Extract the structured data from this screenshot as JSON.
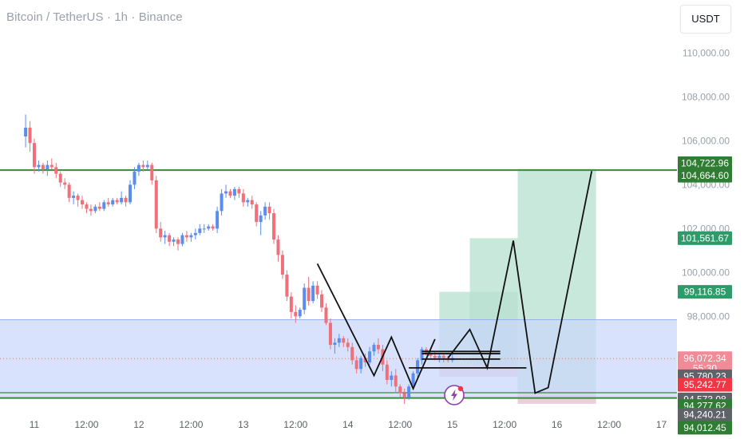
{
  "header": {
    "title": "Bitcoin / TetherUS · 1h · Binance",
    "currency": "USDT"
  },
  "colors": {
    "up": "#5b8def",
    "down": "#ef6f7a",
    "level_line": "#3a8a3c",
    "zone_fill": "#c9d7fb",
    "zone_border": "#98b2f5",
    "target_fill": "#b7e0d0",
    "stop_fill": "#e8c7d4",
    "path": "#111111"
  },
  "chart_data": {
    "type": "candlestick",
    "ylim": [
      93500,
      110600
    ],
    "y_ticks": [
      {
        "value": 110000,
        "label": "110,000.00"
      },
      {
        "value": 108000,
        "label": "108,000.00"
      },
      {
        "value": 106000,
        "label": "106,000.00"
      },
      {
        "value": 104000,
        "label": "104,000.00"
      },
      {
        "value": 102000,
        "label": "102,000.00"
      },
      {
        "value": 100000,
        "label": "100,000.00"
      },
      {
        "value": 98000,
        "label": "98,000.00"
      }
    ],
    "x_ticks": [
      {
        "t": 0,
        "label": "11"
      },
      {
        "t": 12,
        "label": "12:00"
      },
      {
        "t": 24,
        "label": "12"
      },
      {
        "t": 36,
        "label": "12:00"
      },
      {
        "t": 48,
        "label": "13"
      },
      {
        "t": 60,
        "label": "12:00"
      },
      {
        "t": 72,
        "label": "14"
      },
      {
        "t": 84,
        "label": "12:00"
      },
      {
        "t": 96,
        "label": "15"
      },
      {
        "t": 108,
        "label": "12:00"
      },
      {
        "t": 120,
        "label": "16"
      },
      {
        "t": 132,
        "label": "12:00"
      },
      {
        "t": 144,
        "label": "17"
      }
    ],
    "time_origin": "11",
    "candles": [
      [
        -2,
        106200,
        107200,
        105700,
        106600
      ],
      [
        -1,
        106600,
        106900,
        105500,
        105900
      ],
      [
        0,
        105900,
        106100,
        104500,
        104800
      ],
      [
        1,
        104800,
        105100,
        104600,
        104900
      ],
      [
        2,
        104900,
        105000,
        104500,
        104700
      ],
      [
        3,
        104700,
        105100,
        104400,
        104900
      ],
      [
        4,
        104900,
        105200,
        104700,
        104800
      ],
      [
        5,
        104800,
        105000,
        104300,
        104500
      ],
      [
        6,
        104500,
        104600,
        103900,
        104100
      ],
      [
        7,
        104100,
        104300,
        103800,
        104000
      ],
      [
        8,
        104000,
        104100,
        103200,
        103400
      ],
      [
        9,
        103400,
        103700,
        103100,
        103500
      ],
      [
        10,
        103500,
        103600,
        103000,
        103300
      ],
      [
        11,
        103300,
        103500,
        102900,
        103100
      ],
      [
        12,
        103100,
        103200,
        102700,
        102900
      ],
      [
        13,
        102900,
        103100,
        102600,
        102800
      ],
      [
        14,
        102800,
        103100,
        102700,
        103000
      ],
      [
        15,
        103000,
        103200,
        102800,
        102900
      ],
      [
        16,
        102900,
        103300,
        102800,
        103200
      ],
      [
        17,
        103200,
        103400,
        103000,
        103100
      ],
      [
        18,
        103100,
        103400,
        103000,
        103300
      ],
      [
        19,
        103300,
        103400,
        103100,
        103200
      ],
      [
        20,
        103200,
        103700,
        103100,
        103400
      ],
      [
        21,
        103400,
        103500,
        103000,
        103200
      ],
      [
        22,
        103200,
        104200,
        103100,
        104000
      ],
      [
        23,
        104000,
        104800,
        103800,
        104600
      ],
      [
        24,
        104600,
        105000,
        104400,
        104900
      ],
      [
        25,
        104900,
        105100,
        104600,
        104800
      ],
      [
        26,
        104800,
        105100,
        104700,
        104900
      ],
      [
        27,
        104900,
        105000,
        104000,
        104200
      ],
      [
        28,
        104200,
        104400,
        101800,
        102000
      ],
      [
        29,
        102000,
        102300,
        101400,
        101600
      ],
      [
        30,
        101600,
        101900,
        101300,
        101700
      ],
      [
        31,
        101700,
        101800,
        101200,
        101400
      ],
      [
        32,
        101400,
        101600,
        101200,
        101500
      ],
      [
        33,
        101500,
        101600,
        101000,
        101300
      ],
      [
        34,
        101300,
        101800,
        101200,
        101700
      ],
      [
        35,
        101700,
        101900,
        101400,
        101600
      ],
      [
        36,
        101600,
        101800,
        101400,
        101700
      ],
      [
        37,
        101700,
        102000,
        101500,
        101800
      ],
      [
        38,
        101800,
        102200,
        101700,
        102000
      ],
      [
        39,
        102000,
        102200,
        101800,
        102000
      ],
      [
        40,
        102000,
        102200,
        101900,
        102100
      ],
      [
        41,
        102100,
        102200,
        101900,
        102000
      ],
      [
        42,
        102000,
        103000,
        101800,
        102800
      ],
      [
        43,
        102800,
        103800,
        102600,
        103600
      ],
      [
        44,
        103600,
        104000,
        103400,
        103700
      ],
      [
        45,
        103700,
        103800,
        103400,
        103500
      ],
      [
        46,
        103500,
        103900,
        103300,
        103800
      ],
      [
        47,
        103800,
        103900,
        103400,
        103600
      ],
      [
        48,
        103600,
        103800,
        103000,
        103200
      ],
      [
        49,
        103200,
        103400,
        103000,
        103300
      ],
      [
        50,
        103300,
        103500,
        102900,
        103100
      ],
      [
        51,
        103100,
        103200,
        102100,
        102300
      ],
      [
        52,
        102300,
        102800,
        101700,
        102600
      ],
      [
        53,
        102600,
        103200,
        102400,
        103000
      ],
      [
        54,
        103000,
        103200,
        102400,
        102700
      ],
      [
        55,
        102700,
        102900,
        101300,
        101500
      ],
      [
        56,
        101500,
        101700,
        100500,
        100800
      ],
      [
        57,
        100800,
        101000,
        99700,
        99900
      ],
      [
        58,
        99900,
        100100,
        98700,
        98900
      ],
      [
        59,
        98900,
        99100,
        97900,
        98200
      ],
      [
        60,
        98200,
        98500,
        97700,
        98000
      ],
      [
        61,
        98000,
        98400,
        97900,
        98300
      ],
      [
        62,
        98300,
        99500,
        98100,
        99300
      ],
      [
        63,
        99300,
        99800,
        98500,
        98700
      ],
      [
        64,
        98700,
        99600,
        98600,
        99400
      ],
      [
        65,
        99400,
        99600,
        98800,
        99000
      ],
      [
        66,
        99000,
        99200,
        98200,
        98400
      ],
      [
        67,
        98400,
        98600,
        97600,
        97700
      ],
      [
        68,
        97700,
        97900,
        96500,
        96700
      ],
      [
        69,
        96700,
        97000,
        96300,
        96800
      ],
      [
        70,
        96800,
        97200,
        96600,
        97000
      ],
      [
        71,
        97000,
        97100,
        96600,
        96800
      ],
      [
        72,
        96800,
        97000,
        96400,
        96600
      ],
      [
        73,
        96600,
        96800,
        95800,
        96000
      ],
      [
        74,
        96000,
        96200,
        95400,
        95600
      ],
      [
        75,
        95600,
        96200,
        95400,
        96100
      ],
      [
        76,
        96100,
        96300,
        95700,
        95900
      ],
      [
        77,
        95900,
        96600,
        95800,
        96400
      ],
      [
        78,
        96400,
        96800,
        96200,
        96700
      ],
      [
        79,
        96700,
        97000,
        96300,
        96500
      ],
      [
        80,
        96500,
        96700,
        95500,
        95800
      ],
      [
        81,
        95800,
        96000,
        94900,
        95100
      ],
      [
        82,
        95100,
        95500,
        94800,
        95300
      ],
      [
        83,
        95300,
        95600,
        94500,
        94800
      ],
      [
        84,
        94800,
        94900,
        94300,
        94500
      ],
      [
        85,
        94500,
        94700,
        94000,
        94300
      ],
      [
        86,
        94300,
        94900,
        94200,
        94800
      ],
      [
        87,
        94800,
        95500,
        94700,
        95400
      ],
      [
        88,
        95400,
        96100,
        95200,
        96000
      ],
      [
        89,
        96000,
        96600,
        95800,
        96500
      ],
      [
        90,
        96500,
        96600,
        96200,
        96300
      ],
      [
        91,
        96300,
        96500,
        96100,
        96200
      ],
      [
        92,
        96200,
        96400,
        96000,
        96100
      ],
      [
        93,
        96100,
        96300,
        95900,
        96200
      ],
      [
        94,
        96200,
        96300,
        95900,
        96100
      ],
      [
        95,
        96100,
        96200,
        95900,
        96000
      ],
      [
        96,
        96000,
        96300,
        95900,
        96100
      ]
    ],
    "levels": [
      104664.6,
      94520,
      94277.62
    ],
    "zone": [
      94277.62,
      97850
    ],
    "zone_inner_line": 94520,
    "current_price_line": 96072.34,
    "projection_boxes": [
      {
        "t1": 93,
        "t2": 106,
        "top": 99116.85,
        "bottom": 95780.23,
        "kind": "target"
      },
      {
        "t1": 106,
        "t2": 111,
        "top": 99116.85,
        "bottom": 95780.23,
        "kind": "target"
      },
      {
        "t1": 100,
        "t2": 111,
        "top": 101561.67,
        "bottom": 95780.23,
        "kind": "target"
      },
      {
        "t1": 111,
        "t2": 129,
        "top": 104722.96,
        "bottom": 94600,
        "kind": "target"
      },
      {
        "t1": 93,
        "t2": 111,
        "top": 95780.23,
        "bottom": 95242.77,
        "kind": "stop"
      },
      {
        "t1": 111,
        "t2": 129,
        "top": 94600,
        "bottom": 94012.45,
        "kind": "stop"
      }
    ],
    "drawn_lines": [
      [
        [
          65,
          100400
        ],
        [
          78,
          95300
        ],
        [
          82,
          97050
        ],
        [
          87,
          94700
        ],
        [
          92,
          96960
        ]
      ],
      [
        [
          95,
          96100
        ],
        [
          100,
          97400
        ],
        [
          104,
          95650
        ],
        [
          110,
          101450
        ],
        [
          115,
          94500
        ],
        [
          118,
          94750
        ],
        [
          128,
          104620
        ]
      ]
    ],
    "horizontal_segments": [
      {
        "t1": 86,
        "t2": 113,
        "value": 95650
      },
      {
        "t1": 89,
        "t2": 107,
        "value": 96050
      },
      {
        "t1": 89,
        "t2": 107,
        "value": 96300
      },
      {
        "t1": 89,
        "t2": 107,
        "value": 96400
      }
    ],
    "price_labels": [
      {
        "value": 104722.96,
        "text": "104,722.96",
        "color": "#2e7d32",
        "offset": -7
      },
      {
        "value": 104664.6,
        "text": "104,664.60",
        "color": "#2e7d32",
        "offset": 7
      },
      {
        "value": 101561.67,
        "text": "101,561.67",
        "color": "#2e9c6a",
        "offset": 0
      },
      {
        "value": 99116.85,
        "text": "99,116.85",
        "color": "#2e9c6a",
        "offset": 0
      },
      {
        "value": 96072.34,
        "text": "96,072.34",
        "color": "#f08b97",
        "offset": -1,
        "sub": "55:30"
      },
      {
        "value": 95780.23,
        "text": "95,780.23",
        "color": "#5f6368",
        "offset": 14
      },
      {
        "value": 95242.77,
        "text": "95,242.77",
        "color": "#f23645",
        "offset": 10
      },
      {
        "value": 94573.08,
        "text": "94,573.08",
        "color": "#5f6368",
        "offset": 10
      },
      {
        "value": 94277.62,
        "text": "94,277.62",
        "color": "#2e7d32",
        "offset": 10
      },
      {
        "value": 94240.21,
        "text": "94,240.21",
        "color": "#5f6368",
        "offset": 20
      },
      {
        "value": 94012.45,
        "text": "94,012.45",
        "color": "#2e7d32",
        "offset": 30
      }
    ]
  }
}
